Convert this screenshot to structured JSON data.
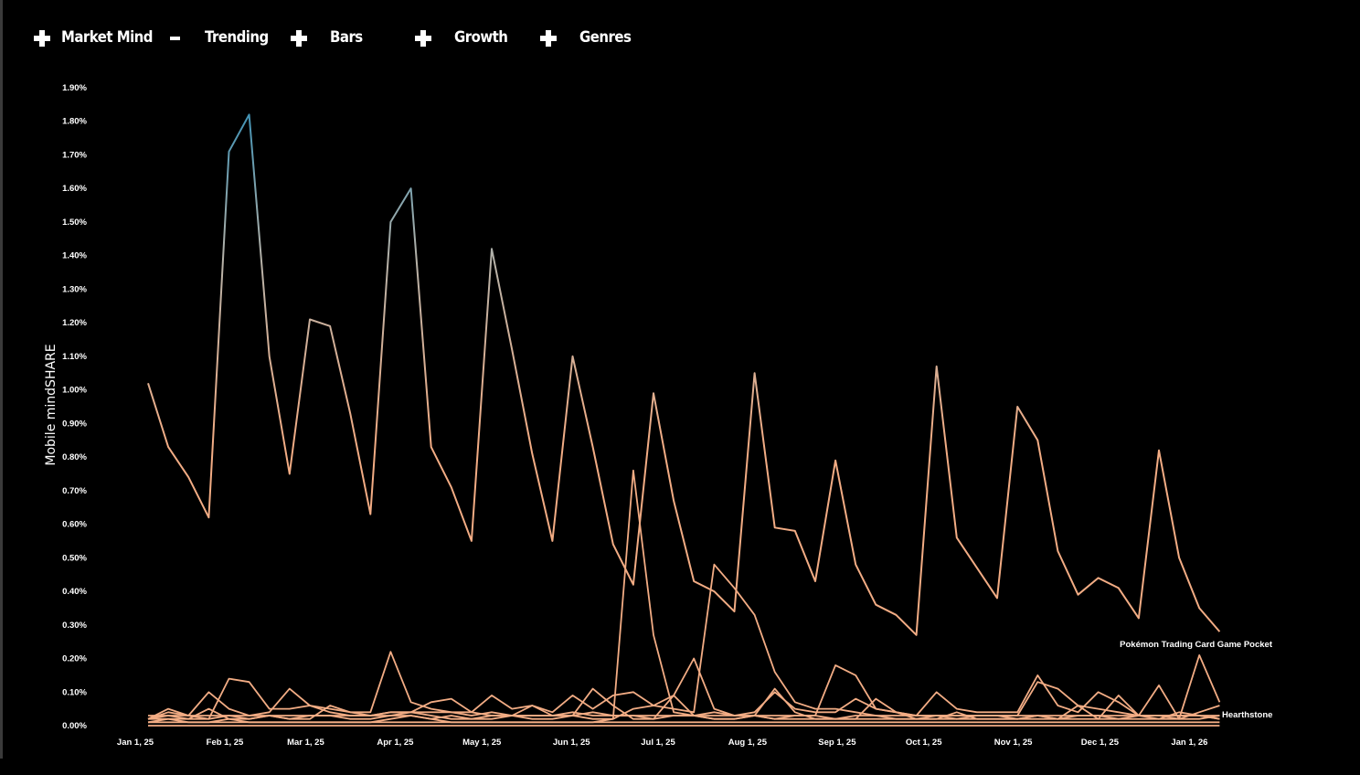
{
  "nav": {
    "items": [
      {
        "label": "Market Mind",
        "icon": "plus-icon"
      },
      {
        "label": "Trending",
        "icon": "minus-icon"
      },
      {
        "label": "Bars",
        "icon": "plus-icon"
      },
      {
        "label": "Growth",
        "icon": "plus-icon"
      },
      {
        "label": "Genres",
        "icon": "plus-icon"
      }
    ]
  },
  "colors": {
    "background": "#000000",
    "series_low": "#f2ac84",
    "series_mid": "#b8b2a8",
    "series_high": "#3f92b5"
  },
  "chart_data": {
    "type": "line",
    "title": "",
    "xlabel": "",
    "ylabel": "Mobile mindSHARE",
    "ylim": [
      0,
      0.019
    ],
    "y_ticks": [
      "0.00%",
      "0.10%",
      "0.20%",
      "0.30%",
      "0.40%",
      "0.50%",
      "0.60%",
      "0.70%",
      "0.80%",
      "0.90%",
      "1.00%",
      "1.10%",
      "1.20%",
      "1.30%",
      "1.40%",
      "1.50%",
      "1.60%",
      "1.70%",
      "1.80%",
      "1.90%"
    ],
    "x_ticks": [
      "Jan 1, 25",
      "Feb 1, 25",
      "Mar 1, 25",
      "Apr 1, 25",
      "May 1, 25",
      "Jun 1, 25",
      "Jul 1, 25",
      "Aug 1, 25",
      "Sep 1, 25",
      "Oct 1, 25",
      "Nov 1, 25",
      "Dec 1, 25",
      "Jan 1, 26"
    ],
    "x_start": "2025-01-01",
    "x_step_days": 7,
    "grid": false,
    "legend": "none",
    "series": [
      {
        "name": "Pokémon Trading Card Game Pocket",
        "values": [
          0.0102,
          0.0083,
          0.0074,
          0.0062,
          0.0171,
          0.0182,
          0.011,
          0.0075,
          0.0121,
          0.0119,
          0.0093,
          0.0063,
          0.015,
          0.016,
          0.0083,
          0.0071,
          0.0055,
          0.0142,
          0.0112,
          0.0081,
          0.0055,
          0.011,
          0.0083,
          0.0054,
          0.0042,
          0.0099,
          0.0067,
          0.0043,
          0.004,
          0.0034,
          0.0105,
          0.0059,
          0.0058,
          0.0043,
          0.0079,
          0.0048,
          0.0036,
          0.0033,
          0.0027,
          0.0107,
          0.0056,
          0.0047,
          0.0038,
          0.0095,
          0.0085,
          0.0052,
          0.0039,
          0.0044,
          0.0041,
          0.0032,
          0.0082,
          0.005,
          0.0035,
          0.0028
        ]
      },
      {
        "name": "Hearthstone",
        "values": [
          0.0003,
          0.0003,
          0.0003,
          0.0003,
          0.0003,
          0.0003,
          0.0003,
          0.0003,
          0.0003,
          0.0003,
          0.0003,
          0.0003,
          0.0004,
          0.0004,
          0.0004,
          0.0004,
          0.0003,
          0.0004,
          0.0003,
          0.0003,
          0.0003,
          0.0003,
          0.0004,
          0.0003,
          0.0003,
          0.0002,
          0.0003,
          0.0003,
          0.0003,
          0.0003,
          0.0003,
          0.0002,
          0.0003,
          0.0003,
          0.0002,
          0.0003,
          0.0003,
          0.0002,
          0.0002,
          0.0003,
          0.0002,
          0.0003,
          0.0003,
          0.0002,
          0.0003,
          0.0002,
          0.0003,
          0.0003,
          0.0002,
          0.0003,
          0.0003,
          0.0002,
          0.0002,
          0.0003
        ]
      },
      {
        "name": "",
        "values": [
          0.0002,
          0.0002,
          0.0001,
          0.0001,
          0.0001,
          0.0001,
          0.0001,
          0.0001,
          0.0001,
          0.0001,
          0.0001,
          0.0001,
          0.0001,
          0.0001,
          0.0001,
          0.0001,
          0.0001,
          0.0001,
          0.0001,
          0.0001,
          0.0001,
          0.0001,
          0.0001,
          0.0002,
          0.0076,
          0.0027,
          0.0004,
          0.0003,
          0.0002,
          0.0002,
          0.0003,
          0.0002,
          0.0002,
          0.0002,
          0.0002,
          0.0002,
          0.0002,
          0.0002,
          0.0002,
          0.0002,
          0.0002,
          0.0002,
          0.0002,
          0.0002,
          0.0002,
          0.0002,
          0.0002,
          0.0002,
          0.0002,
          0.0002,
          0.0002,
          0.0002,
          0.0021,
          0.0007
        ]
      },
      {
        "name": "",
        "values": [
          0.0002,
          0.0003,
          0.0002,
          0.0002,
          0.0003,
          0.0002,
          0.0003,
          0.0002,
          0.0003,
          0.0003,
          0.0002,
          0.0002,
          0.0003,
          0.0003,
          0.0002,
          0.0003,
          0.0002,
          0.0003,
          0.0003,
          0.0002,
          0.0002,
          0.0003,
          0.0002,
          0.0002,
          0.0005,
          0.0006,
          0.0005,
          0.0004,
          0.0048,
          0.0041,
          0.0033,
          0.0016,
          0.0007,
          0.0005,
          0.0005,
          0.0004,
          0.0003,
          0.0003,
          0.0003,
          0.0003,
          0.0003,
          0.0003,
          0.0003,
          0.0003,
          0.0003,
          0.0003,
          0.0003,
          0.0003,
          0.0003,
          0.0003,
          0.0003,
          0.0003,
          0.0003,
          0.0003
        ]
      },
      {
        "name": "",
        "values": [
          0.0002,
          0.0005,
          0.0003,
          0.0002,
          0.0014,
          0.0013,
          0.0005,
          0.0005,
          0.0006,
          0.0005,
          0.0004,
          0.0004,
          0.0022,
          0.0007,
          0.0005,
          0.0004,
          0.0004,
          0.0003,
          0.0003,
          0.0003,
          0.0003,
          0.0004,
          0.0003,
          0.0003,
          0.0003,
          0.0003,
          0.0003,
          0.0003,
          0.0004,
          0.0003,
          0.0003,
          0.0003,
          0.0003,
          0.0003,
          0.0018,
          0.0015,
          0.0005,
          0.0004,
          0.0003,
          0.0003,
          0.0003,
          0.0003,
          0.0003,
          0.0003,
          0.0013,
          0.0011,
          0.0006,
          0.0005,
          0.0004,
          0.0003,
          0.0003,
          0.0003,
          0.0003,
          0.0002
        ]
      },
      {
        "name": "",
        "values": [
          0.0002,
          0.0004,
          0.0003,
          0.001,
          0.0005,
          0.0003,
          0.0004,
          0.0011,
          0.0006,
          0.0004,
          0.0003,
          0.0003,
          0.0004,
          0.0004,
          0.0007,
          0.0008,
          0.0004,
          0.0009,
          0.0005,
          0.0006,
          0.0004,
          0.0009,
          0.0005,
          0.0009,
          0.001,
          0.0006,
          0.0009,
          0.002,
          0.0005,
          0.0003,
          0.0004,
          0.001,
          0.0005,
          0.0004,
          0.0004,
          0.0008,
          0.0005,
          0.0004,
          0.0003,
          0.001,
          0.0005,
          0.0004,
          0.0004,
          0.0004,
          0.0015,
          0.0006,
          0.0004,
          0.001,
          0.0007,
          0.0003,
          0.0012,
          0.0002,
          0.0004,
          0.0006
        ]
      },
      {
        "name": "",
        "values": [
          0.0001,
          0.0002,
          0.0002,
          0.0005,
          0.0002,
          0.0002,
          0.0003,
          0.0002,
          0.0002,
          0.0006,
          0.0004,
          0.0003,
          0.0003,
          0.0004,
          0.0003,
          0.0002,
          0.0002,
          0.0002,
          0.0003,
          0.0006,
          0.0003,
          0.0003,
          0.0011,
          0.0006,
          0.0002,
          0.0002,
          0.0009,
          0.0003,
          0.0002,
          0.0002,
          0.0003,
          0.0011,
          0.0004,
          0.0002,
          0.0002,
          0.0002,
          0.0008,
          0.0004,
          0.0002,
          0.0002,
          0.0004,
          0.0002,
          0.0002,
          0.0002,
          0.0003,
          0.0002,
          0.0006,
          0.0002,
          0.0009,
          0.0003,
          0.0002,
          0.0004,
          0.0003,
          0.0002
        ]
      },
      {
        "name": "",
        "values": [
          0.0001,
          0.0001,
          0.0001,
          0.0001,
          0.0002,
          0.0001,
          0.0001,
          0.0001,
          0.0001,
          0.0001,
          0.0001,
          0.0001,
          0.0002,
          0.0003,
          0.0002,
          0.0001,
          0.0001,
          0.0001,
          0.0001,
          0.0001,
          0.0001,
          0.0001,
          0.0001,
          0.0001,
          0.0001,
          0.0001,
          0.0001,
          0.0001,
          0.0001,
          0.0001,
          0.0001,
          0.0001,
          0.0001,
          0.0001,
          0.0001,
          0.0001,
          0.0001,
          0.0001,
          0.0001,
          0.0001,
          0.0001,
          0.0001,
          0.0001,
          0.0001,
          0.0001,
          0.0001,
          0.0001,
          0.0001,
          0.0001,
          0.0001,
          0.0001,
          0.0001,
          0.0001,
          0.0001
        ]
      },
      {
        "name": "",
        "values": [
          0.0,
          0.0,
          0.0,
          0.0,
          0.0,
          0.0,
          0.0,
          0.0,
          0.0,
          0.0,
          0.0,
          0.0,
          0.0,
          0.0,
          0.0,
          0.0,
          0.0,
          0.0,
          0.0,
          0.0,
          0.0,
          0.0,
          0.0,
          0.0,
          0.0,
          0.0,
          0.0,
          0.0,
          0.0,
          0.0,
          0.0,
          0.0,
          0.0,
          0.0,
          0.0,
          0.0,
          0.0,
          0.0,
          0.0,
          0.0,
          0.0,
          0.0,
          0.0,
          0.0,
          0.0,
          0.0,
          0.0,
          0.0,
          0.0,
          0.0,
          0.0,
          0.0,
          0.0,
          0.0
        ]
      }
    ]
  }
}
